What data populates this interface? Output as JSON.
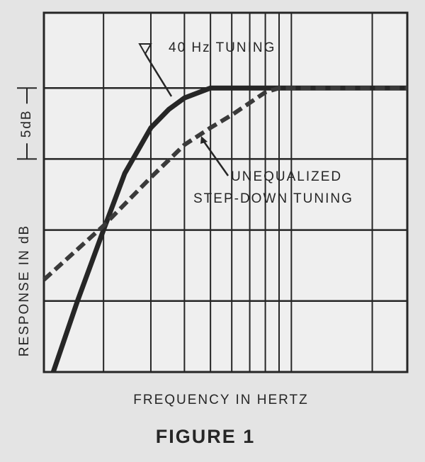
{
  "chart_data": {
    "type": "line",
    "x_axis_label": "FREQUENCY IN HERTZ",
    "y_axis_label": "RESPONSE IN dB",
    "caption": "FIGURE 1",
    "xscale": "log",
    "xlim": [
      12,
      270
    ],
    "ylim": [
      -20,
      5.3
    ],
    "xgrid": [
      20,
      30,
      40,
      50,
      60,
      70,
      80,
      90,
      100,
      200
    ],
    "ygrid": [
      0,
      -5,
      -10,
      -15
    ],
    "scale_bar": {
      "label": "5dB",
      "from": 0,
      "to": -5
    },
    "series": [
      {
        "name": "40 Hz TUNING",
        "color": "#262626",
        "dashed": false,
        "x": [
          13,
          16,
          20,
          24,
          30,
          35,
          40,
          50,
          270
        ],
        "values": [
          -20,
          -15,
          -10,
          -6,
          -2.8,
          -1.5,
          -0.7,
          0,
          0
        ]
      },
      {
        "name": [
          "UNEQUALIZED",
          "STEP-DOWN TUNING"
        ],
        "color": "#3a3a3a",
        "dashed": true,
        "x": [
          12,
          20,
          30,
          40,
          50,
          60,
          80,
          90,
          270
        ],
        "values": [
          -13.5,
          -9.7,
          -6.3,
          -4,
          -2.8,
          -1.9,
          -0.3,
          0,
          0
        ]
      }
    ]
  }
}
